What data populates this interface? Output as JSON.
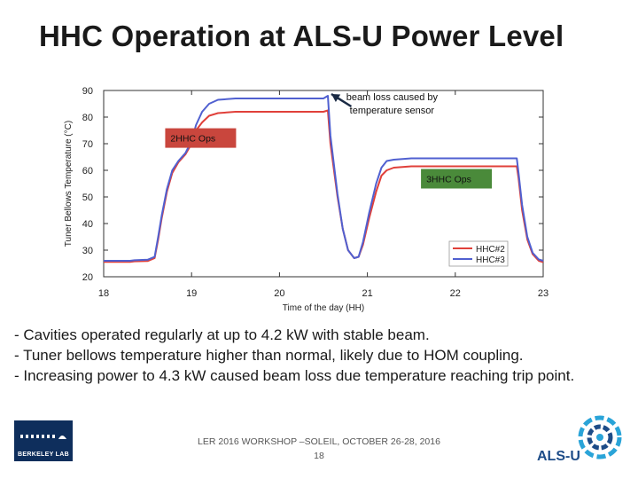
{
  "slide": {
    "title": "HHC Operation at ALS-U Power Level",
    "bullets": [
      "- Cavities operated regularly at up to 4.2 kW with stable beam.",
      "- Tuner bellows temperature higher than normal, likely due to HOM coupling.",
      "- Increasing power to 4.3 kW caused beam loss due temperature reaching trip point."
    ],
    "footer_line1": "LER 2016 WORKSHOP –SOLEIL,  OCTOBER 26-28, 2016",
    "footer_line2": "18",
    "logo_left_text": "BERKELEY LAB",
    "logo_right_text": "ALS-U"
  },
  "chart_data": {
    "type": "line",
    "title": "",
    "xlabel": "Time of the day (HH)",
    "ylabel": "Tuner Bellows Temperature (°C)",
    "xlim": [
      18,
      23
    ],
    "ylim": [
      20,
      90
    ],
    "xticks": [
      18,
      19,
      20,
      21,
      22,
      23
    ],
    "yticks": [
      20,
      30,
      40,
      50,
      60,
      70,
      80,
      90
    ],
    "legend_position": "bottom-right",
    "series": [
      {
        "name": "HHC#2",
        "color": "#e0403a",
        "points": [
          [
            18.0,
            25.6
          ],
          [
            18.3,
            25.6
          ],
          [
            18.35,
            25.8
          ],
          [
            18.5,
            25.9
          ],
          [
            18.58,
            27
          ],
          [
            18.62,
            34
          ],
          [
            18.66,
            42
          ],
          [
            18.72,
            52
          ],
          [
            18.78,
            59
          ],
          [
            18.85,
            63
          ],
          [
            18.93,
            66
          ],
          [
            19.0,
            70
          ],
          [
            19.05,
            75
          ],
          [
            19.12,
            78
          ],
          [
            19.2,
            80.5
          ],
          [
            19.3,
            81.5
          ],
          [
            19.5,
            82
          ],
          [
            20.0,
            82
          ],
          [
            20.5,
            82
          ],
          [
            20.55,
            82.5
          ],
          [
            20.58,
            70
          ],
          [
            20.62,
            60
          ],
          [
            20.66,
            50
          ],
          [
            20.72,
            38
          ],
          [
            20.78,
            30
          ],
          [
            20.85,
            27
          ],
          [
            20.9,
            27.5
          ],
          [
            20.95,
            32
          ],
          [
            21.02,
            42
          ],
          [
            21.1,
            52
          ],
          [
            21.16,
            58
          ],
          [
            21.22,
            60
          ],
          [
            21.3,
            61
          ],
          [
            21.5,
            61.5
          ],
          [
            22.0,
            61.5
          ],
          [
            22.5,
            61.5
          ],
          [
            22.7,
            61.5
          ],
          [
            22.72,
            57
          ],
          [
            22.76,
            45
          ],
          [
            22.82,
            34
          ],
          [
            22.88,
            28.5
          ],
          [
            22.95,
            26
          ],
          [
            23.0,
            25.5
          ]
        ]
      },
      {
        "name": "HHC#3",
        "color": "#5060d0",
        "points": [
          [
            18.0,
            26
          ],
          [
            18.3,
            26
          ],
          [
            18.35,
            26.2
          ],
          [
            18.5,
            26.4
          ],
          [
            18.58,
            27.5
          ],
          [
            18.62,
            35
          ],
          [
            18.66,
            43
          ],
          [
            18.72,
            53
          ],
          [
            18.78,
            60
          ],
          [
            18.85,
            63.5
          ],
          [
            18.93,
            66.5
          ],
          [
            19.0,
            71
          ],
          [
            19.05,
            77
          ],
          [
            19.12,
            82
          ],
          [
            19.2,
            85
          ],
          [
            19.3,
            86.5
          ],
          [
            19.5,
            87
          ],
          [
            20.0,
            87
          ],
          [
            20.5,
            87
          ],
          [
            20.55,
            88
          ],
          [
            20.58,
            73
          ],
          [
            20.62,
            62
          ],
          [
            20.66,
            51
          ],
          [
            20.72,
            38
          ],
          [
            20.78,
            30
          ],
          [
            20.85,
            27
          ],
          [
            20.9,
            27.5
          ],
          [
            20.95,
            33
          ],
          [
            21.02,
            44
          ],
          [
            21.1,
            55
          ],
          [
            21.16,
            61
          ],
          [
            21.22,
            63.5
          ],
          [
            21.3,
            64
          ],
          [
            21.5,
            64.5
          ],
          [
            22.0,
            64.5
          ],
          [
            22.5,
            64.5
          ],
          [
            22.7,
            64.5
          ],
          [
            22.72,
            59
          ],
          [
            22.76,
            47
          ],
          [
            22.82,
            35
          ],
          [
            22.88,
            29
          ],
          [
            22.95,
            26.5
          ],
          [
            23.0,
            26
          ]
        ]
      }
    ],
    "annotations": [
      {
        "text": "2HHC Ops",
        "fill": "#c9463d",
        "x": 18.72,
        "y": 70.8
      },
      {
        "text": "3HHC Ops",
        "fill": "#4a8a3a",
        "x": 21.63,
        "y": 55.5
      }
    ],
    "callout": {
      "text_line1": "beam loss caused by",
      "text_line2": "temperature sensor",
      "point_x": 20.55,
      "point_y": 88,
      "text_x": 21.28,
      "text_y": 85
    }
  }
}
